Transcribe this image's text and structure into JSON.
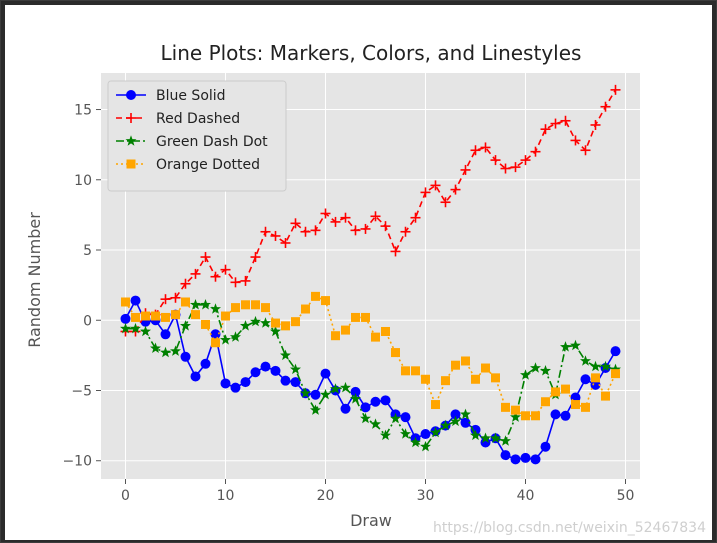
{
  "chart_data": {
    "type": "line",
    "title": "Line Plots: Markers, Colors, and Linestyles",
    "xlabel": "Draw",
    "ylabel": "Random Number",
    "xlim": [
      -2.45,
      51.45
    ],
    "ylim": [
      -11.3,
      17.6
    ],
    "xticks": [
      0,
      10,
      20,
      30,
      40,
      50
    ],
    "yticks": [
      -10,
      -5,
      0,
      5,
      10,
      15
    ],
    "xtick_labels": [
      "0",
      "10",
      "20",
      "30",
      "40",
      "50"
    ],
    "ytick_labels": [
      "−10",
      "−5",
      "0",
      "5",
      "10",
      "15"
    ],
    "grid": true,
    "legend_position": "top-left",
    "style": "ggplot",
    "x": [
      0,
      1,
      2,
      3,
      4,
      5,
      6,
      7,
      8,
      9,
      10,
      11,
      12,
      13,
      14,
      15,
      16,
      17,
      18,
      19,
      20,
      21,
      22,
      23,
      24,
      25,
      26,
      27,
      28,
      29,
      30,
      31,
      32,
      33,
      34,
      35,
      36,
      37,
      38,
      39,
      40,
      41,
      42,
      43,
      44,
      45,
      46,
      47,
      48,
      49
    ],
    "series": [
      {
        "name": "Blue Solid",
        "color": "#0000ff",
        "marker": "circle",
        "dash": "",
        "values": [
          0.1,
          1.4,
          -0.1,
          0.0,
          -1.0,
          0.4,
          -2.6,
          -4.0,
          -3.1,
          -1.0,
          -4.5,
          -4.8,
          -4.4,
          -3.7,
          -3.3,
          -3.6,
          -4.3,
          -4.4,
          -5.2,
          -5.3,
          -3.8,
          -5.0,
          -6.3,
          -5.1,
          -6.2,
          -5.8,
          -5.7,
          -6.7,
          -6.9,
          -8.4,
          -8.1,
          -7.9,
          -7.5,
          -6.7,
          -7.3,
          -7.8,
          -8.7,
          -8.4,
          -9.6,
          -9.9,
          -9.8,
          -9.9,
          -9.0,
          -6.7,
          -6.8,
          -5.5,
          -4.2,
          -4.6,
          -3.4,
          -2.2
        ]
      },
      {
        "name": "Red Dashed",
        "color": "#ff0000",
        "marker": "plus",
        "dash": "6 4",
        "values": [
          -0.8,
          -0.8,
          0.5,
          0.4,
          1.5,
          1.6,
          2.6,
          3.3,
          4.5,
          3.1,
          3.6,
          2.7,
          2.8,
          4.5,
          6.3,
          6.0,
          5.5,
          6.9,
          6.3,
          6.4,
          7.6,
          7.0,
          7.3,
          6.4,
          6.5,
          7.4,
          6.7,
          4.9,
          6.3,
          7.3,
          9.1,
          9.6,
          8.4,
          9.3,
          10.7,
          12.1,
          12.3,
          11.4,
          10.8,
          10.9,
          11.4,
          12.0,
          13.6,
          14.0,
          14.2,
          12.8,
          12.1,
          13.9,
          15.2,
          16.4
        ]
      },
      {
        "name": "Green Dash Dot",
        "color": "#008000",
        "marker": "star",
        "dash": "8 3 2 3",
        "values": [
          -0.6,
          -0.6,
          -0.8,
          -2.0,
          -2.3,
          -2.2,
          -0.4,
          1.1,
          1.1,
          0.8,
          -1.4,
          -1.2,
          -0.4,
          -0.1,
          -0.2,
          -0.8,
          -2.5,
          -3.5,
          -5.2,
          -6.4,
          -5.3,
          -4.9,
          -4.8,
          -5.6,
          -7.0,
          -7.4,
          -8.2,
          -7.0,
          -8.1,
          -8.7,
          -9.0,
          -8.0,
          -7.5,
          -7.2,
          -6.7,
          -8.2,
          -8.4,
          -8.4,
          -8.6,
          -6.9,
          -3.9,
          -3.4,
          -3.6,
          -5.3,
          -1.9,
          -1.8,
          -2.9,
          -3.3,
          -3.3,
          -3.5
        ]
      },
      {
        "name": "Orange Dotted",
        "color": "#ffa500",
        "marker": "square",
        "dash": "2 3",
        "values": [
          1.3,
          0.2,
          0.3,
          0.3,
          0.2,
          0.4,
          1.3,
          0.4,
          -0.3,
          -1.6,
          0.3,
          0.9,
          1.1,
          1.1,
          0.9,
          -0.2,
          -0.4,
          -0.1,
          0.8,
          1.7,
          1.4,
          -1.1,
          -0.7,
          0.2,
          0.2,
          -1.2,
          -0.8,
          -2.3,
          -3.6,
          -3.6,
          -4.2,
          -6.0,
          -4.3,
          -3.2,
          -2.9,
          -4.2,
          -3.4,
          -4.1,
          -6.2,
          -6.4,
          -6.8,
          -6.8,
          -5.8,
          -5.1,
          -4.9,
          -6.0,
          -6.2,
          -4.1,
          -5.4,
          -3.8
        ]
      }
    ]
  },
  "watermark": "https://blog.csdn.net/weixin_52467834"
}
